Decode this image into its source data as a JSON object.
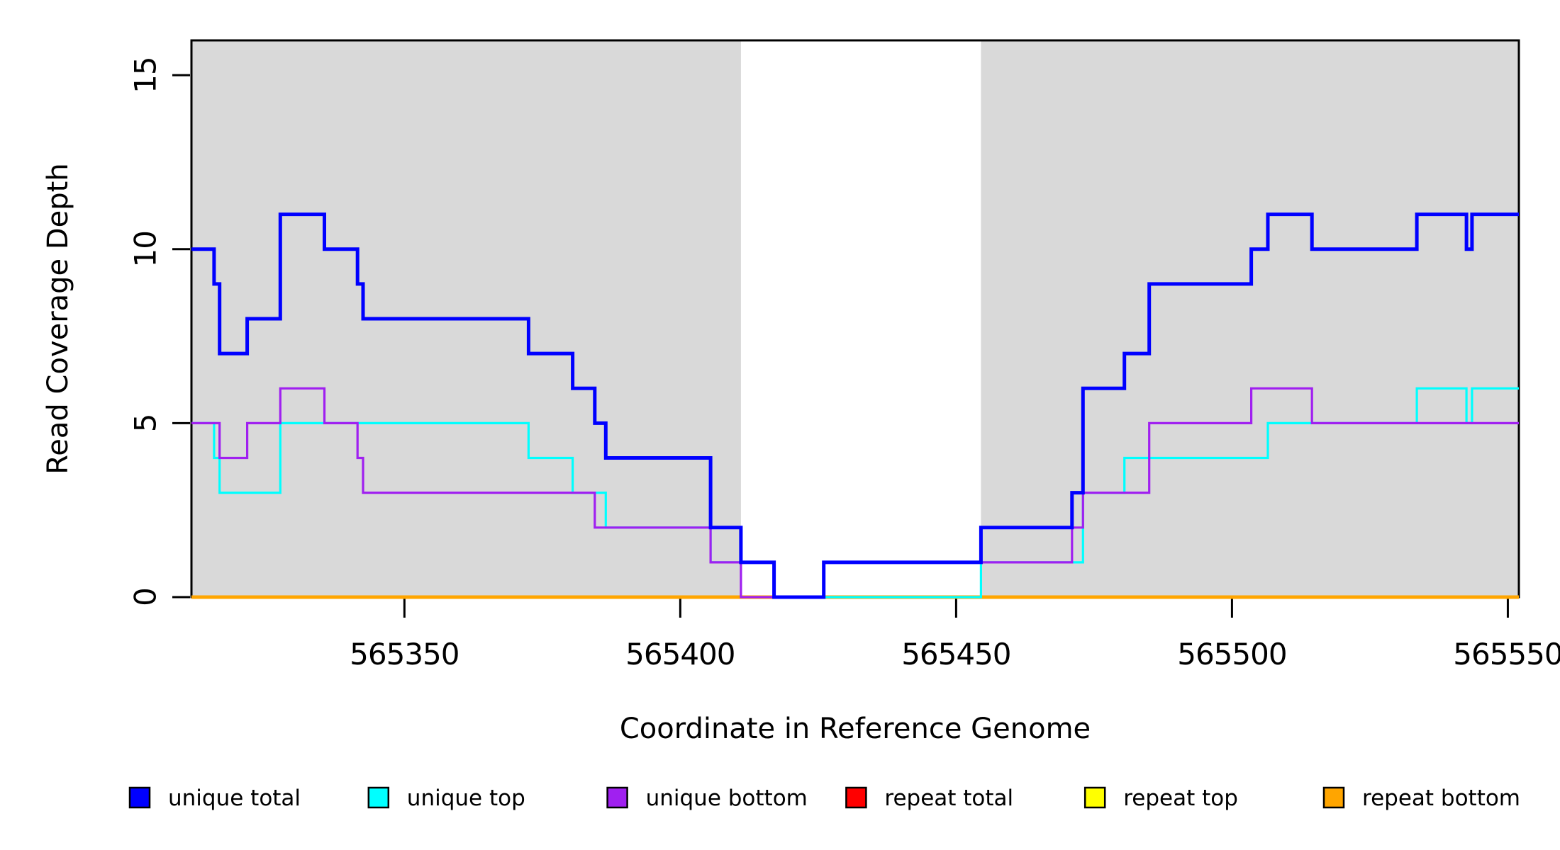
{
  "chart_data": {
    "type": "line",
    "subtype": "step-coverage",
    "title": "",
    "x_label": "Coordinate in Reference Genome",
    "y_label": "Read Coverage Depth",
    "xlim": [
      565311.4,
      565552
    ],
    "ylim": [
      0,
      16
    ],
    "x_ticks": [
      565350,
      565400,
      565450,
      565500,
      565550
    ],
    "y_ticks": [
      0,
      5,
      10,
      15
    ],
    "grid": false,
    "legend_position": "bottom",
    "plot_background": "#ffffff",
    "shaded_region_color": "#D9D9D9",
    "shaded_regions": [
      {
        "from": 565311.4,
        "to": 565411.0
      },
      {
        "from": 565454.5,
        "to": 565552.0
      }
    ],
    "x_end": 565552,
    "series": [
      {
        "name": "repeat total",
        "color": "#FF0000",
        "width": 3,
        "points": [
          [
            565311.4,
            0
          ]
        ]
      },
      {
        "name": "repeat top",
        "color": "#FFFF00",
        "width": 3,
        "points": [
          [
            565311.4,
            0
          ]
        ]
      },
      {
        "name": "repeat bottom",
        "color": "#FFA500",
        "width": 5,
        "points": [
          [
            565311.4,
            0
          ]
        ]
      },
      {
        "name": "unique top",
        "color": "#00FFFF",
        "width": 3.2,
        "points": [
          [
            565311.4,
            5
          ],
          [
            565315.5,
            4
          ],
          [
            565316.5,
            3
          ],
          [
            565327.5,
            5
          ],
          [
            565372.5,
            4
          ],
          [
            565380.5,
            3
          ],
          [
            565386.5,
            2
          ],
          [
            565405.5,
            1
          ],
          [
            565417,
            0
          ],
          [
            565454.5,
            1
          ],
          [
            565473,
            3
          ],
          [
            565480.5,
            4
          ],
          [
            565506.5,
            5
          ],
          [
            565533.5,
            6
          ],
          [
            565542.5,
            5
          ],
          [
            565543.5,
            6
          ]
        ]
      },
      {
        "name": "unique bottom",
        "color": "#A020F0",
        "width": 3.2,
        "points": [
          [
            565311.4,
            5
          ],
          [
            565316.5,
            4
          ],
          [
            565321.5,
            5
          ],
          [
            565327.5,
            6
          ],
          [
            565335.5,
            5
          ],
          [
            565341.5,
            4
          ],
          [
            565342.5,
            3
          ],
          [
            565384.5,
            2
          ],
          [
            565405.5,
            1
          ],
          [
            565411,
            0
          ],
          [
            565426,
            1
          ],
          [
            565471,
            2
          ],
          [
            565473,
            3
          ],
          [
            565485,
            5
          ],
          [
            565503.5,
            6
          ],
          [
            565514.5,
            5
          ]
        ]
      },
      {
        "name": "unique total",
        "color": "#0000FF",
        "width": 5,
        "points": [
          [
            565311.4,
            10
          ],
          [
            565315.5,
            9
          ],
          [
            565316.5,
            7
          ],
          [
            565321.5,
            8
          ],
          [
            565327.5,
            11
          ],
          [
            565335.5,
            10
          ],
          [
            565341.5,
            9
          ],
          [
            565342.5,
            8
          ],
          [
            565372.5,
            7
          ],
          [
            565380.5,
            6
          ],
          [
            565384.5,
            5
          ],
          [
            565386.5,
            4
          ],
          [
            565405.5,
            2
          ],
          [
            565411,
            1
          ],
          [
            565417,
            0
          ],
          [
            565426,
            1
          ],
          [
            565454.5,
            2
          ],
          [
            565471,
            3
          ],
          [
            565473,
            6
          ],
          [
            565480.5,
            7
          ],
          [
            565485,
            9
          ],
          [
            565503.5,
            10
          ],
          [
            565506.5,
            11
          ],
          [
            565514.5,
            10
          ],
          [
            565533.5,
            11
          ],
          [
            565542.5,
            10
          ],
          [
            565543.5,
            11
          ]
        ]
      }
    ]
  },
  "legend": {
    "items": [
      {
        "label": "unique total",
        "color": "#0000FF"
      },
      {
        "label": "unique top",
        "color": "#00FFFF"
      },
      {
        "label": "unique bottom",
        "color": "#A020F0"
      },
      {
        "label": "repeat total",
        "color": "#FF0000"
      },
      {
        "label": "repeat top",
        "color": "#FFFF00"
      },
      {
        "label": "repeat bottom",
        "color": "#FFA500"
      }
    ]
  }
}
